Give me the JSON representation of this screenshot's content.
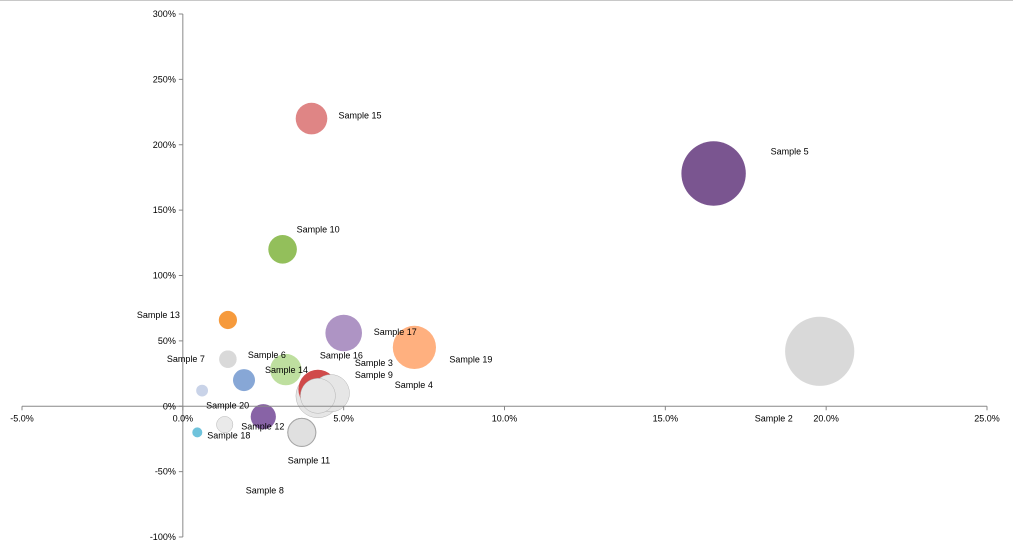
{
  "chart_data": {
    "type": "bubble",
    "xlim": [
      -0.05,
      0.25
    ],
    "ylim": [
      -1.0,
      3.0
    ],
    "x_ticks": [
      {
        "value": -0.05,
        "label": "-5.0%"
      },
      {
        "value": 0.0,
        "label": "0.0%"
      },
      {
        "value": 0.05,
        "label": "5.0%"
      },
      {
        "value": 0.1,
        "label": "10.0%"
      },
      {
        "value": 0.15,
        "label": "15.0%"
      },
      {
        "value": 0.2,
        "label": "20.0%"
      },
      {
        "value": 0.25,
        "label": "25.0%"
      }
    ],
    "y_ticks": [
      {
        "value": 3.0,
        "label": "300%"
      },
      {
        "value": 2.5,
        "label": "250%"
      },
      {
        "value": 2.0,
        "label": "200%"
      },
      {
        "value": 1.5,
        "label": "150%"
      },
      {
        "value": 1.0,
        "label": "100%"
      },
      {
        "value": 0.5,
        "label": "50%"
      },
      {
        "value": 0.0,
        "label": "0%"
      },
      {
        "value": -0.5,
        "label": "-50%"
      },
      {
        "value": -1.0,
        "label": "-100%"
      }
    ],
    "grid": false,
    "legend": "none",
    "points": [
      {
        "label": "Sample 2",
        "x": 0.198,
        "y": 0.42,
        "size": 3770,
        "color": "#d9d9d9"
      },
      {
        "label": "Sample 3",
        "x": 0.042,
        "y": 0.08,
        "size": 1520,
        "color": "#e6e6e6"
      },
      {
        "label": "Sample 4",
        "x": 0.046,
        "y": 0.1,
        "size": 1100,
        "color": "#e6e6e6"
      },
      {
        "label": "Sample 5",
        "x": 0.165,
        "y": 1.78,
        "size": 3250,
        "color": "#7a5590"
      },
      {
        "label": "Sample 6",
        "x": 0.014,
        "y": 0.36,
        "size": 240,
        "color": "#d9d9d9"
      },
      {
        "label": "Sample 7",
        "x": 0.014,
        "y": 0.36,
        "size": 240,
        "color": "#d9d9d9"
      },
      {
        "label": "Sample 8",
        "x": 0.037,
        "y": -0.2,
        "size": 620,
        "color": "#e0e0e0"
      },
      {
        "label": "Sample 9",
        "x": 0.042,
        "y": 0.08,
        "size": 960,
        "color": "#e6e6e6"
      },
      {
        "label": "Sample 10",
        "x": 0.031,
        "y": 1.2,
        "size": 640,
        "color": "#93bf5b"
      },
      {
        "label": "Sample 11",
        "x": 0.037,
        "y": -0.2,
        "size": 620,
        "color": "#e0e0e0"
      },
      {
        "label": "Sample 12",
        "x": 0.025,
        "y": -0.08,
        "size": 500,
        "color": "#8863a6"
      },
      {
        "label": "Sample 13",
        "x": 0.014,
        "y": 0.66,
        "size": 260,
        "color": "#f69a3c"
      },
      {
        "label": "Sample 14",
        "x": 0.019,
        "y": 0.2,
        "size": 380,
        "color": "#87a7d6"
      },
      {
        "label": "Sample 15",
        "x": 0.04,
        "y": 2.2,
        "size": 780,
        "color": "#df8585"
      },
      {
        "label": "Sample 16",
        "x": 0.042,
        "y": 0.13,
        "size": 1190,
        "color": "#d04a4a"
      },
      {
        "label": "Sample 17",
        "x": 0.05,
        "y": 0.56,
        "size": 1050,
        "color": "#ae94c4"
      },
      {
        "label": "Sample 18",
        "x": 0.0045,
        "y": -0.2,
        "size": 80,
        "color": "#6fc3dc"
      },
      {
        "label": "Sample 19",
        "x": 0.072,
        "y": 0.45,
        "size": 1470,
        "color": "#ffb07f"
      },
      {
        "label": "Sample 20",
        "x": 0.006,
        "y": 0.12,
        "size": 110,
        "color": "#c9d3e8"
      },
      {
        "label": "",
        "x": 0.013,
        "y": -0.14,
        "size": 210,
        "color": "#e6e6e6"
      },
      {
        "label": "",
        "x": 0.032,
        "y": 0.28,
        "size": 770,
        "color": "#b3d98e"
      }
    ]
  }
}
